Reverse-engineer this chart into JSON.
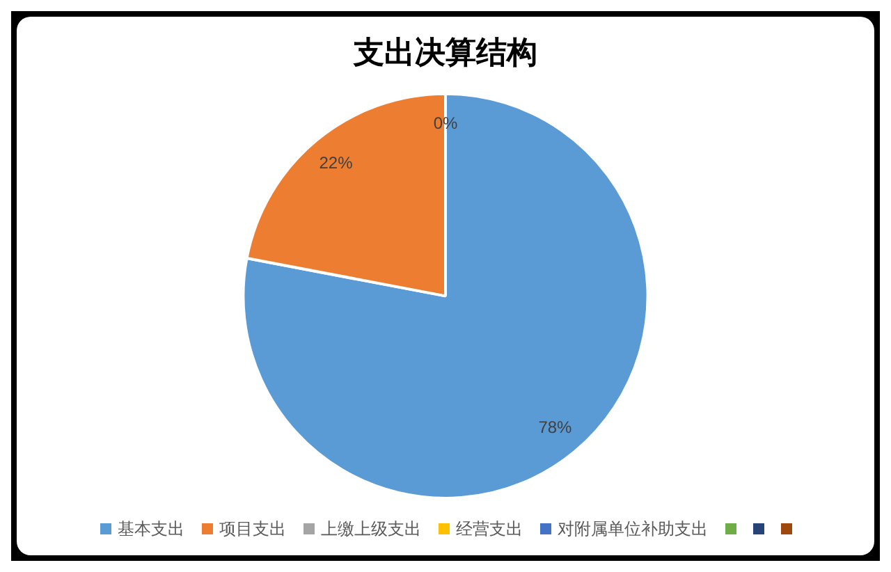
{
  "chart_data": {
    "type": "pie",
    "title": "支出决算结构",
    "categories": [
      "基本支出",
      "项目支出",
      "上缴上级支出",
      "经营支出",
      "对附属单位补助支出",
      null,
      null,
      null
    ],
    "values": [
      78,
      22,
      0,
      0,
      0,
      0,
      0,
      0
    ],
    "colors": [
      "#5b9bd5",
      "#ed7d31",
      "#a5a5a5",
      "#ffc000",
      "#4472c4",
      "#70ad47",
      "#264478",
      "#9e480e"
    ],
    "value_labels": [
      "78%",
      "22%",
      "0%",
      null,
      null,
      null,
      null,
      null
    ],
    "legend": "bottom"
  }
}
